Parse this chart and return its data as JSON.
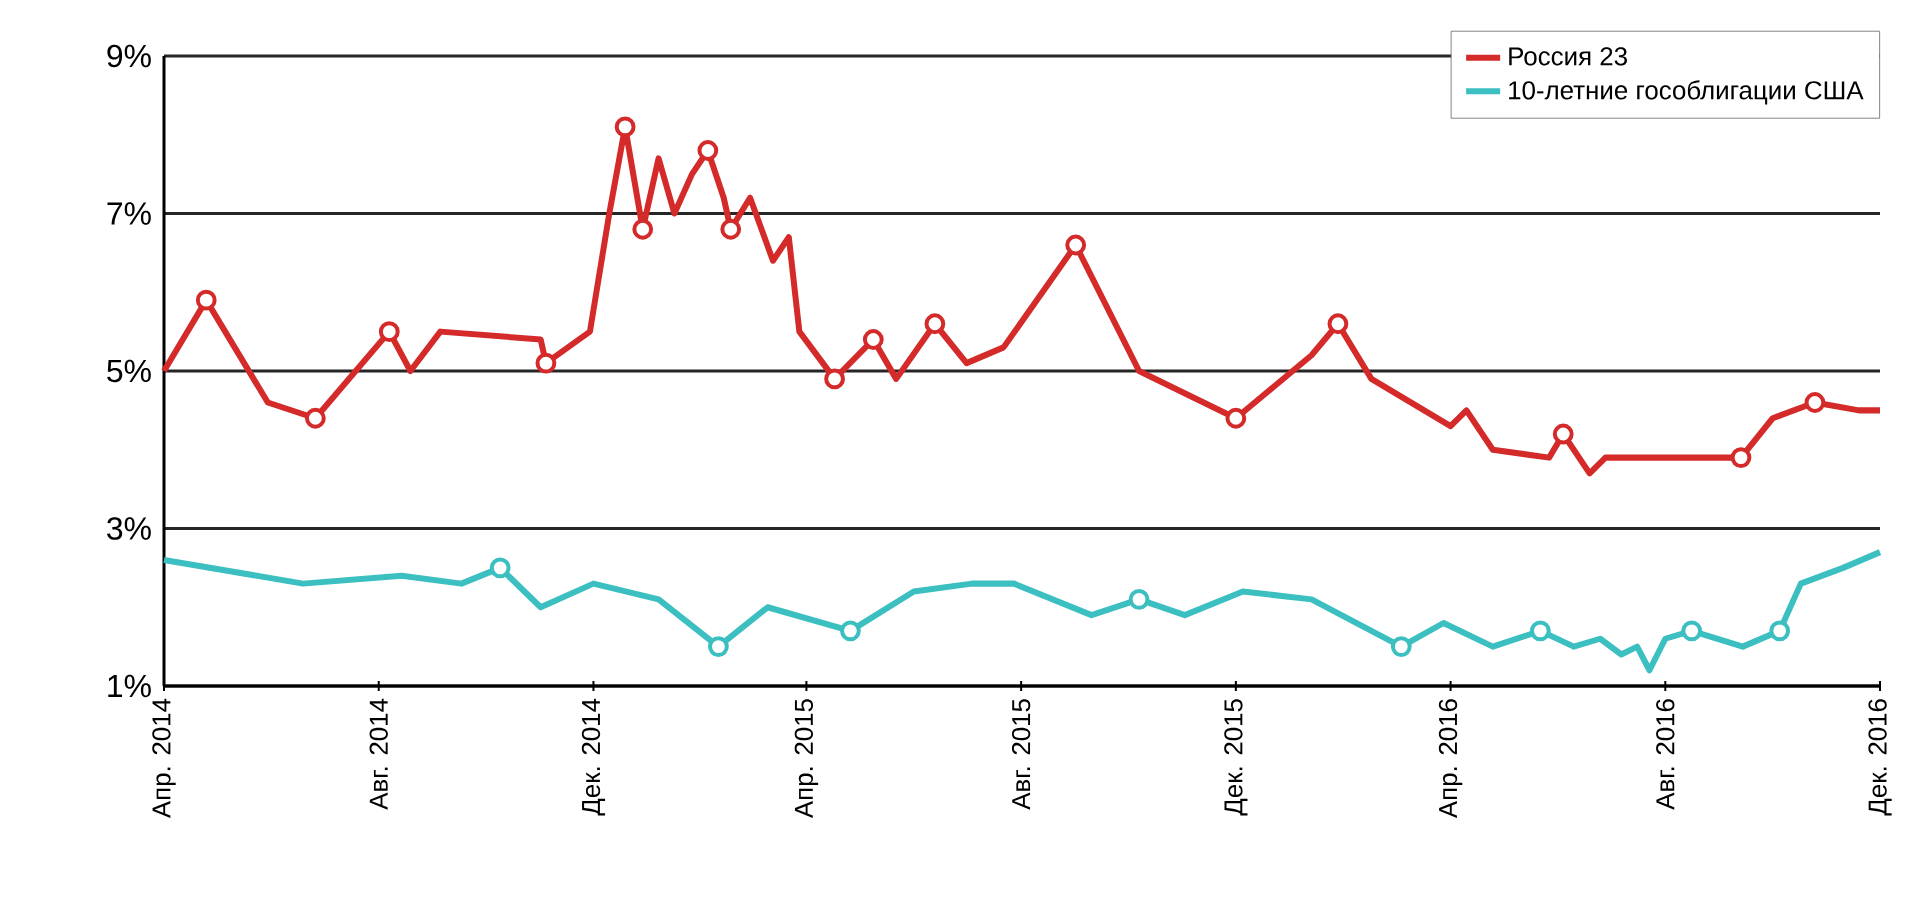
{
  "chart_data": {
    "type": "line",
    "xlim": [
      "2014-04-01",
      "2016-12-01"
    ],
    "xticks": [
      {
        "value": "2014-04-01",
        "label": "Апр. 2014"
      },
      {
        "value": "2014-08-01",
        "label": "Авг. 2014"
      },
      {
        "value": "2014-12-01",
        "label": "Дек. 2014"
      },
      {
        "value": "2015-04-01",
        "label": "Апр. 2015"
      },
      {
        "value": "2015-08-01",
        "label": "Авг. 2015"
      },
      {
        "value": "2015-12-01",
        "label": "Дек. 2015"
      },
      {
        "value": "2016-04-01",
        "label": "Апр. 2016"
      },
      {
        "value": "2016-08-01",
        "label": "Авг. 2016"
      },
      {
        "value": "2016-12-01",
        "label": "Дек. 2016"
      }
    ],
    "ylim": [
      1,
      9
    ],
    "yticks": [
      {
        "value": 1,
        "label": "1%"
      },
      {
        "value": 3,
        "label": "3%"
      },
      {
        "value": 5,
        "label": "5%"
      },
      {
        "value": 7,
        "label": "7%"
      },
      {
        "value": 9,
        "label": "9%"
      }
    ],
    "grid": "y",
    "legend": "top right",
    "line_style": "solid",
    "series": [
      {
        "name": "Россия 23",
        "color": "#d42a2a",
        "marker": "none",
        "x": [
          "2014-04-01",
          "2014-04-25",
          "2014-05-30",
          "2014-06-26",
          "2014-08-07",
          "2014-08-19",
          "2014-09-05",
          "2014-11-01",
          "2014-11-04",
          "2014-11-29",
          "2014-12-10",
          "2014-12-19",
          "2014-12-29",
          "2015-01-07",
          "2015-01-16",
          "2015-01-26",
          "2015-02-04",
          "2015-02-13",
          "2015-02-17",
          "2015-02-28",
          "2015-03-13",
          "2015-03-22",
          "2015-03-28",
          "2015-04-17",
          "2015-05-09",
          "2015-05-22",
          "2015-06-13",
          "2015-07-01",
          "2015-07-22",
          "2015-09-01",
          "2015-10-07",
          "2015-12-01",
          "2016-01-13",
          "2016-01-28",
          "2016-02-16",
          "2016-04-01",
          "2016-04-10",
          "2016-04-25",
          "2016-05-27",
          "2016-06-04",
          "2016-06-19",
          "2016-06-28",
          "2016-09-08",
          "2016-09-13",
          "2016-10-01",
          "2016-10-25",
          "2016-11-19",
          "2016-12-01"
        ],
        "values": [
          5.0,
          5.9,
          4.6,
          4.4,
          5.5,
          5.0,
          5.5,
          5.4,
          5.1,
          5.5,
          7.0,
          8.1,
          6.8,
          7.7,
          7.0,
          7.5,
          7.8,
          7.2,
          6.8,
          7.2,
          6.4,
          6.7,
          5.5,
          4.9,
          5.4,
          4.9,
          5.6,
          5.1,
          5.3,
          6.6,
          5.0,
          4.4,
          5.2,
          5.6,
          4.9,
          4.3,
          4.5,
          4.0,
          3.9,
          4.2,
          3.7,
          3.9,
          3.9,
          3.9,
          4.4,
          4.6,
          4.5,
          4.5
        ]
      },
      {
        "name": "10-летние гособлигации США",
        "color": "#3bbfc0",
        "marker": "none",
        "x": [
          "2014-04-01",
          "2014-06-19",
          "2014-08-14",
          "2014-09-17",
          "2014-10-09",
          "2014-11-01",
          "2014-12-01",
          "2015-01-07",
          "2015-02-10",
          "2015-03-10",
          "2015-04-26",
          "2015-06-01",
          "2015-07-04",
          "2015-07-28",
          "2015-09-10",
          "2015-10-07",
          "2015-11-02",
          "2015-12-05",
          "2016-01-13",
          "2016-03-04",
          "2016-03-28",
          "2016-04-25",
          "2016-05-22",
          "2016-06-10",
          "2016-06-25",
          "2016-07-07",
          "2016-07-16",
          "2016-07-23",
          "2016-08-01",
          "2016-08-16",
          "2016-09-14",
          "2016-10-05",
          "2016-10-17",
          "2016-11-10",
          "2016-12-01"
        ],
        "values": [
          2.6,
          2.3,
          2.4,
          2.3,
          2.5,
          2.0,
          2.3,
          2.1,
          1.5,
          2.0,
          1.7,
          2.2,
          2.3,
          2.3,
          1.9,
          2.1,
          1.9,
          2.2,
          2.1,
          1.5,
          1.8,
          1.5,
          1.7,
          1.5,
          1.6,
          1.4,
          1.5,
          1.2,
          1.6,
          1.7,
          1.5,
          1.7,
          2.3,
          2.5,
          2.7
        ]
      },
      {
        "color": "#d42a2a",
        "type": "scatter",
        "marker": "circle",
        "x": [
          "2014-04-25",
          "2014-06-26",
          "2014-08-07",
          "2014-11-04",
          "2014-12-19",
          "2014-12-29",
          "2015-02-04",
          "2015-02-17",
          "2015-04-17",
          "2015-05-09",
          "2015-06-13",
          "2015-09-01",
          "2015-12-01",
          "2016-01-28",
          "2016-06-04",
          "2016-09-13",
          "2016-10-25"
        ],
        "values": [
          5.9,
          4.4,
          5.5,
          5.1,
          8.1,
          6.8,
          7.8,
          6.8,
          4.9,
          5.4,
          5.6,
          6.6,
          4.4,
          5.6,
          4.2,
          3.9,
          4.6
        ]
      },
      {
        "color": "#3bbfc0",
        "type": "scatter",
        "marker": "circle",
        "x": [
          "2014-10-09",
          "2015-02-10",
          "2015-04-26",
          "2015-10-07",
          "2016-03-04",
          "2016-05-22",
          "2016-08-16",
          "2016-10-05"
        ],
        "values": [
          2.5,
          1.5,
          1.7,
          2.1,
          1.5,
          1.7,
          1.7,
          1.7
        ]
      }
    ]
  }
}
